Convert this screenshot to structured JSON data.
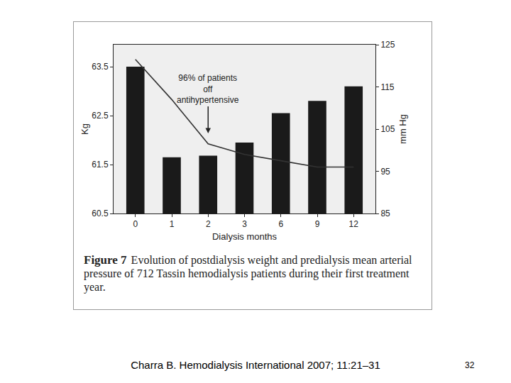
{
  "chart_data": {
    "type": "bar",
    "x_label": "Dialysis months",
    "y_label": "Kg",
    "y2_label": "mm Hg",
    "categories": [
      "0",
      "1",
      "2",
      "3",
      "6",
      "9",
      "12"
    ],
    "series": [
      {
        "type": "bar",
        "color": "#1a1a1a",
        "values": [
          63.5,
          61.65,
          61.68,
          61.95,
          62.55,
          62.8,
          63.1
        ]
      },
      {
        "type": "line",
        "axis": "y2",
        "color": "#333333",
        "values": [
          121.5,
          112,
          101.5,
          99,
          97.5,
          96,
          96
        ]
      }
    ],
    "ylim": [
      60.5,
      63.95
    ],
    "yticks": [
      60.5,
      61.5,
      62.5,
      63.5
    ],
    "y2lim": [
      85,
      125
    ],
    "y2ticks": [
      85,
      95,
      105,
      115,
      125
    ],
    "grid": false,
    "annotations": [
      {
        "text": [
          "96% of patients",
          "off",
          "antihypertensive"
        ],
        "category": "2",
        "y": 104,
        "axis": "y2"
      }
    ],
    "caption": {
      "label": "Figure 7",
      "text": "Evolution of postdialysis weight and predialysis mean arterial pressure of 712 Tassin hemodialysis patients during their first treatment year."
    }
  },
  "source": "Charra B. Hemodialysis International 2007; 11:21–31",
  "page": "32"
}
